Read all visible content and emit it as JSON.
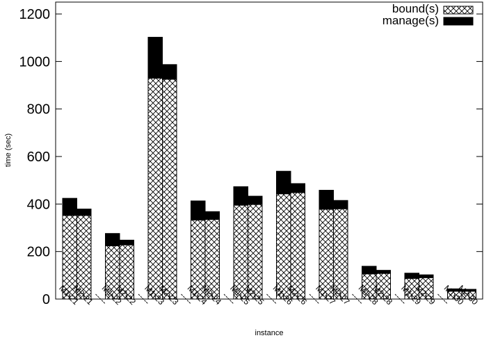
{
  "chart_data": {
    "type": "bar",
    "stacked": true,
    "xlabel": "instance",
    "ylabel": "time (sec)",
    "ylim": [
      0,
      1250
    ],
    "yticks": [
      0,
      200,
      400,
      600,
      800,
      1000,
      1200
    ],
    "grid": false,
    "legend_position": "top-right",
    "categories": [
      "M1-21",
      "M2-21",
      "M1-22",
      "M2-22",
      "M1-23",
      "M2-23",
      "M1-24",
      "M2-24",
      "M1-25",
      "M2-25",
      "M1-26",
      "M2-26",
      "M1-27",
      "M2-27",
      "M1-28",
      "M2-28",
      "M1-29",
      "M2-29",
      "M1-30",
      "M2-30"
    ],
    "series": [
      {
        "name": "bound(s)",
        "pattern": "crosshatch",
        "values": [
          352,
          352,
          224,
          228,
          930,
          925,
          333,
          335,
          395,
          398,
          443,
          448,
          378,
          380,
          106,
          108,
          87,
          90,
          33,
          33
        ]
      },
      {
        "name": "manage(s)",
        "pattern": "solid",
        "values": [
          72,
          27,
          52,
          20,
          172,
          62,
          80,
          33,
          78,
          35,
          95,
          38,
          80,
          35,
          32,
          13,
          22,
          12,
          10,
          8
        ]
      }
    ],
    "colors": {
      "bar_fill": "#ffffff",
      "bar_stroke": "#000000",
      "solid": "#000000"
    },
    "separator_label": "-----"
  }
}
